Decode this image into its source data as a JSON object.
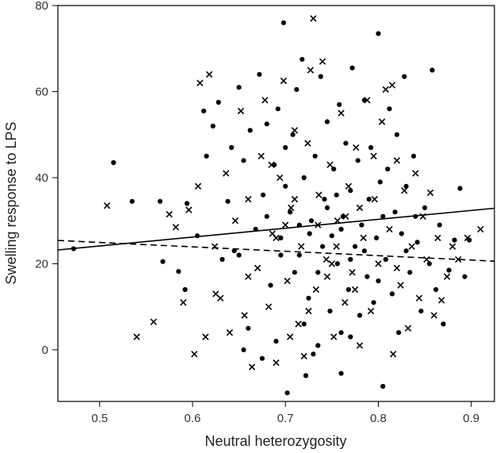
{
  "chart_data": {
    "type": "scatter",
    "title": "",
    "xlabel": "Neutral heterozygosity",
    "ylabel": "Swelling response to LPS",
    "xlim": [
      0.455,
      0.925
    ],
    "ylim": [
      -12,
      80
    ],
    "xticks": [
      0.5,
      0.6,
      0.7,
      0.8,
      0.9
    ],
    "yticks": [
      0,
      20,
      40,
      60,
      80
    ],
    "xtick_labels": [
      "0.5",
      "0.6",
      "0.7",
      "0.8",
      "0.9"
    ],
    "ytick_labels": [
      "0",
      "20",
      "40",
      "60",
      "80"
    ],
    "grid": false,
    "legend": "none",
    "series": [
      {
        "marker": "filled-circle",
        "points": [
          [
            0.472,
            23.5
          ],
          [
            0.515,
            43.5
          ],
          [
            0.535,
            34.5
          ],
          [
            0.565,
            34.5
          ],
          [
            0.568,
            20.5
          ],
          [
            0.585,
            18.2
          ],
          [
            0.592,
            14.0
          ],
          [
            0.594,
            34.0
          ],
          [
            0.605,
            26.5
          ],
          [
            0.612,
            55.5
          ],
          [
            0.615,
            45.0
          ],
          [
            0.622,
            52.0
          ],
          [
            0.628,
            57.5
          ],
          [
            0.632,
            21.0
          ],
          [
            0.638,
            34.5
          ],
          [
            0.642,
            47.0
          ],
          [
            0.645,
            23.0
          ],
          [
            0.65,
            61.0
          ],
          [
            0.655,
            44.0
          ],
          [
            0.662,
            51.0
          ],
          [
            0.668,
            28.0
          ],
          [
            0.672,
            64.0
          ],
          [
            0.676,
            36.0
          ],
          [
            0.68,
            52.5
          ],
          [
            0.684,
            15.0
          ],
          [
            0.688,
            43.0
          ],
          [
            0.692,
            56.0
          ],
          [
            0.695,
            26.0
          ],
          [
            0.698,
            76.0
          ],
          [
            0.7,
            47.0
          ],
          [
            0.702,
            -10.0
          ],
          [
            0.705,
            32.0
          ],
          [
            0.708,
            50.0
          ],
          [
            0.712,
            60.5
          ],
          [
            0.715,
            22.0
          ],
          [
            0.718,
            67.5
          ],
          [
            0.72,
            40.0
          ],
          [
            0.722,
            -6.0
          ],
          [
            0.725,
            12.0
          ],
          [
            0.728,
            30.0
          ],
          [
            0.732,
            45.0
          ],
          [
            0.735,
            18.0
          ],
          [
            0.738,
            63.5
          ],
          [
            0.742,
            35.0
          ],
          [
            0.745,
            53.0
          ],
          [
            0.748,
            9.0
          ],
          [
            0.75,
            26.5
          ],
          [
            0.752,
            42.0
          ],
          [
            0.756,
            20.0
          ],
          [
            0.758,
            57.0
          ],
          [
            0.76,
            -5.5
          ],
          [
            0.762,
            31.0
          ],
          [
            0.765,
            48.0
          ],
          [
            0.768,
            14.0
          ],
          [
            0.77,
            37.0
          ],
          [
            0.772,
            65.5
          ],
          [
            0.775,
            24.0
          ],
          [
            0.778,
            44.0
          ],
          [
            0.78,
            8.0
          ],
          [
            0.782,
            29.0
          ],
          [
            0.785,
            58.0
          ],
          [
            0.788,
            17.0
          ],
          [
            0.79,
            35.0
          ],
          [
            0.792,
            47.0
          ],
          [
            0.795,
            11.0
          ],
          [
            0.798,
            26.0
          ],
          [
            0.8,
            73.5
          ],
          [
            0.802,
            39.0
          ],
          [
            0.805,
            -8.5
          ],
          [
            0.808,
            21.0
          ],
          [
            0.81,
            42.0
          ],
          [
            0.812,
            56.0
          ],
          [
            0.815,
            13.0
          ],
          [
            0.818,
            32.0
          ],
          [
            0.82,
            50.0
          ],
          [
            0.822,
            4.0
          ],
          [
            0.825,
            27.0
          ],
          [
            0.828,
            63.5
          ],
          [
            0.83,
            38.0
          ],
          [
            0.834,
            18.0
          ],
          [
            0.838,
            45.0
          ],
          [
            0.842,
            25.0
          ],
          [
            0.846,
            9.0
          ],
          [
            0.85,
            33.0
          ],
          [
            0.855,
            20.0
          ],
          [
            0.858,
            65.0
          ],
          [
            0.862,
            14.0
          ],
          [
            0.866,
            29.0
          ],
          [
            0.87,
            6.0
          ],
          [
            0.876,
            18.5
          ],
          [
            0.882,
            25.5
          ],
          [
            0.888,
            37.5
          ],
          [
            0.893,
            17.0
          ],
          [
            0.898,
            25.5
          ],
          [
            0.66,
            5.0
          ],
          [
            0.675,
            -2.0
          ],
          [
            0.69,
            2.0
          ],
          [
            0.735,
            1.0
          ],
          [
            0.77,
            3.0
          ],
          [
            0.73,
            -1.0
          ],
          [
            0.655,
            0.0
          ],
          [
            0.72,
            6.0
          ],
          [
            0.76,
            4.0
          ],
          [
            0.7,
            38.0
          ],
          [
            0.745,
            33.0
          ],
          [
            0.785,
            23.0
          ],
          [
            0.715,
            29.0
          ],
          [
            0.76,
            28.0
          ],
          [
            0.74,
            24.0
          ],
          [
            0.726,
            27.0
          ],
          [
            0.805,
            31.0
          ],
          [
            0.695,
            22.0
          ],
          [
            0.68,
            31.0
          ],
          [
            0.83,
            23.0
          ],
          [
            0.77,
            21.0
          ],
          [
            0.755,
            36.0
          ],
          [
            0.71,
            18.0
          ],
          [
            0.8,
            16.0
          ],
          [
            0.65,
            22.0
          ],
          [
            0.84,
            31.0
          ]
        ]
      },
      {
        "marker": "x-cross",
        "points": [
          [
            0.508,
            33.5
          ],
          [
            0.54,
            3.0
          ],
          [
            0.558,
            6.5
          ],
          [
            0.575,
            31.5
          ],
          [
            0.582,
            28.5
          ],
          [
            0.59,
            11.0
          ],
          [
            0.596,
            32.5
          ],
          [
            0.602,
            -1.0
          ],
          [
            0.606,
            38.0
          ],
          [
            0.608,
            62.0
          ],
          [
            0.614,
            3.0
          ],
          [
            0.618,
            64.0
          ],
          [
            0.624,
            24.0
          ],
          [
            0.63,
            12.0
          ],
          [
            0.636,
            41.0
          ],
          [
            0.64,
            4.0
          ],
          [
            0.646,
            30.0
          ],
          [
            0.652,
            55.5
          ],
          [
            0.656,
            8.0
          ],
          [
            0.66,
            35.0
          ],
          [
            0.664,
            -4.0
          ],
          [
            0.67,
            19.0
          ],
          [
            0.674,
            45.0
          ],
          [
            0.678,
            58.0
          ],
          [
            0.682,
            10.0
          ],
          [
            0.686,
            27.0
          ],
          [
            0.69,
            -3.0
          ],
          [
            0.694,
            40.0
          ],
          [
            0.698,
            62.5
          ],
          [
            0.702,
            16.0
          ],
          [
            0.706,
            33.0
          ],
          [
            0.71,
            51.0
          ],
          [
            0.714,
            6.0
          ],
          [
            0.717,
            24.0
          ],
          [
            0.72,
            -1.5
          ],
          [
            0.724,
            48.0
          ],
          [
            0.727,
            65.0
          ],
          [
            0.73,
            77.0
          ],
          [
            0.733,
            14.0
          ],
          [
            0.736,
            36.0
          ],
          [
            0.74,
            67.0
          ],
          [
            0.744,
            21.0
          ],
          [
            0.748,
            43.0
          ],
          [
            0.752,
            3.0
          ],
          [
            0.756,
            30.0
          ],
          [
            0.76,
            55.0
          ],
          [
            0.764,
            11.0
          ],
          [
            0.768,
            38.0
          ],
          [
            0.772,
            18.0
          ],
          [
            0.776,
            47.0
          ],
          [
            0.78,
            1.0
          ],
          [
            0.784,
            26.0
          ],
          [
            0.788,
            58.0
          ],
          [
            0.792,
            9.0
          ],
          [
            0.796,
            35.0
          ],
          [
            0.8,
            20.0
          ],
          [
            0.804,
            53.0
          ],
          [
            0.808,
            60.5
          ],
          [
            0.812,
            28.0
          ],
          [
            0.816,
            -1.0
          ],
          [
            0.82,
            44.0
          ],
          [
            0.824,
            15.0
          ],
          [
            0.828,
            37.0
          ],
          [
            0.832,
            5.0
          ],
          [
            0.836,
            24.0
          ],
          [
            0.84,
            41.0
          ],
          [
            0.844,
            12.0
          ],
          [
            0.848,
            31.0
          ],
          [
            0.852,
            21.0
          ],
          [
            0.856,
            36.5
          ],
          [
            0.86,
            8.0
          ],
          [
            0.864,
            26.0
          ],
          [
            0.868,
            11.5
          ],
          [
            0.874,
            17.0
          ],
          [
            0.88,
            24.0
          ],
          [
            0.886,
            21.0
          ],
          [
            0.896,
            26.0
          ],
          [
            0.91,
            28.0
          ],
          [
            0.625,
            13.0
          ],
          [
            0.685,
            43.0
          ],
          [
            0.745,
            17.0
          ],
          [
            0.705,
            3.0
          ],
          [
            0.765,
            31.0
          ],
          [
            0.795,
            45.0
          ],
          [
            0.815,
            61.5
          ],
          [
            0.725,
            9.0
          ],
          [
            0.775,
            14.0
          ],
          [
            0.69,
            26.0
          ],
          [
            0.735,
            29.0
          ],
          [
            0.755,
            24.0
          ],
          [
            0.78,
            33.0
          ],
          [
            0.71,
            35.0
          ],
          [
            0.66,
            17.0
          ],
          [
            0.82,
            19.0
          ],
          [
            0.7,
            29.0
          ],
          [
            0.75,
            20.0
          ]
        ]
      }
    ],
    "fit_lines": [
      {
        "style": "solid",
        "x": [
          0.455,
          0.925
        ],
        "y": [
          23.2,
          32.9
        ]
      },
      {
        "style": "dashed",
        "x": [
          0.455,
          0.925
        ],
        "y": [
          25.4,
          20.6
        ]
      }
    ]
  }
}
